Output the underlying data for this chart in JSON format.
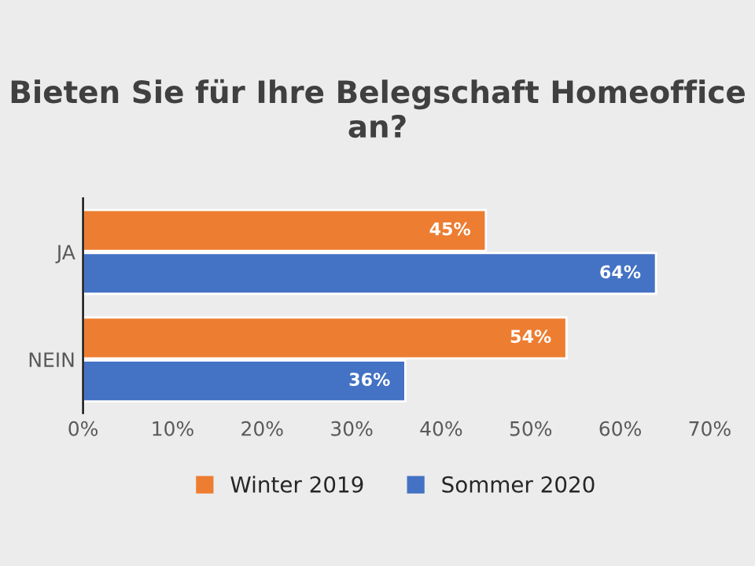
{
  "chart_data": {
    "type": "bar",
    "orientation": "horizontal",
    "title": "Bieten Sie für Ihre Belegschaft Homeoffice an?",
    "categories": [
      "JA",
      "NEIN"
    ],
    "series": [
      {
        "name": "Winter 2019",
        "color": "#ed7d31",
        "values": [
          45,
          54
        ],
        "value_labels": [
          "45%",
          "54%"
        ]
      },
      {
        "name": "Sommer 2020",
        "color": "#4472c4",
        "values": [
          64,
          36
        ],
        "value_labels": [
          "64%",
          "36%"
        ]
      }
    ],
    "xlim": [
      0,
      70
    ],
    "xticks": [
      {
        "value": 0,
        "label": "0%"
      },
      {
        "value": 10,
        "label": "10%"
      },
      {
        "value": 20,
        "label": "20%"
      },
      {
        "value": 30,
        "label": "30%"
      },
      {
        "value": 40,
        "label": "40%"
      },
      {
        "value": 50,
        "label": "50%"
      },
      {
        "value": 60,
        "label": "60%"
      },
      {
        "value": 70,
        "label": "70%"
      }
    ],
    "legend": "bottom"
  }
}
